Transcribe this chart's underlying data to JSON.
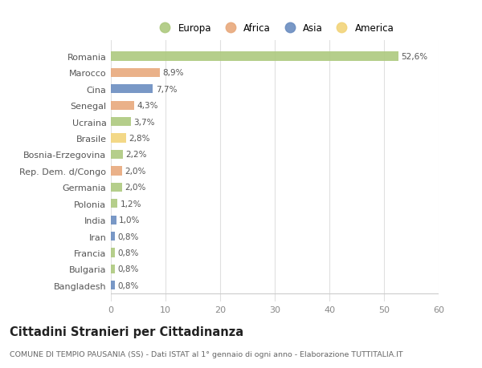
{
  "categories": [
    "Romania",
    "Marocco",
    "Cina",
    "Senegal",
    "Ucraina",
    "Brasile",
    "Bosnia-Erzegovina",
    "Rep. Dem. d/Congo",
    "Germania",
    "Polonia",
    "India",
    "Iran",
    "Francia",
    "Bulgaria",
    "Bangladesh"
  ],
  "values": [
    52.6,
    8.9,
    7.7,
    4.3,
    3.7,
    2.8,
    2.2,
    2.0,
    2.0,
    1.2,
    1.0,
    0.8,
    0.8,
    0.8,
    0.8
  ],
  "labels": [
    "52,6%",
    "8,9%",
    "7,7%",
    "4,3%",
    "3,7%",
    "2,8%",
    "2,2%",
    "2,0%",
    "2,0%",
    "1,2%",
    "1,0%",
    "0,8%",
    "0,8%",
    "0,8%",
    "0,8%"
  ],
  "colors": [
    "#adc97f",
    "#e8a97c",
    "#6b8dc0",
    "#e8a97c",
    "#adc97f",
    "#f2d47a",
    "#adc97f",
    "#e8a97c",
    "#adc97f",
    "#adc97f",
    "#6b8dc0",
    "#6b8dc0",
    "#adc97f",
    "#adc97f",
    "#6b8dc0"
  ],
  "continent_labels": [
    "Europa",
    "Africa",
    "Asia",
    "America"
  ],
  "continent_colors": [
    "#adc97f",
    "#e8a97c",
    "#6b8dc0",
    "#f2d47a"
  ],
  "title": "Cittadini Stranieri per Cittadinanza",
  "subtitle": "COMUNE DI TEMPIO PAUSANIA (SS) - Dati ISTAT al 1° gennaio di ogni anno - Elaborazione TUTTITALIA.IT",
  "xlim": [
    0,
    60
  ],
  "xticks": [
    0,
    10,
    20,
    30,
    40,
    50,
    60
  ],
  "bg_color": "#ffffff",
  "grid_color": "#e0e0e0",
  "bar_height": 0.55
}
